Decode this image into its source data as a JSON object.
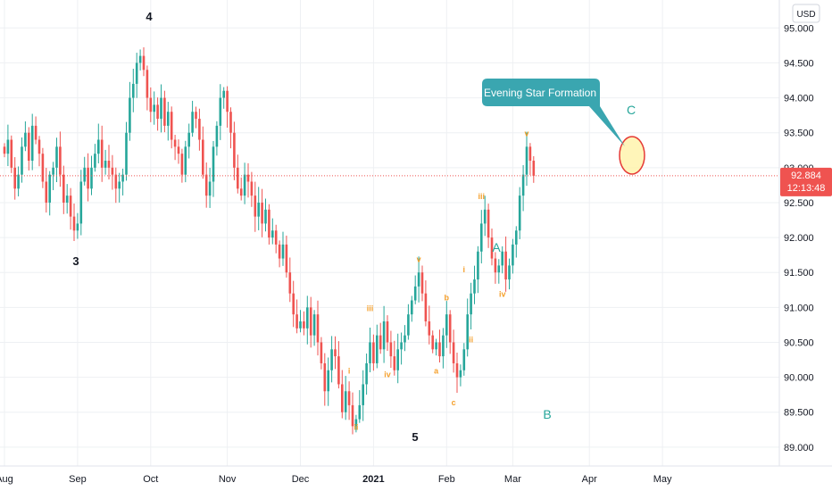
{
  "chart_data": {
    "type": "candlestick",
    "currency": "USD",
    "last_price": "92.884",
    "countdown": "12:13:48",
    "y_ticks": [
      "95.000",
      "94.500",
      "94.000",
      "93.500",
      "93.000",
      "92.500",
      "92.000",
      "91.500",
      "91.000",
      "90.500",
      "90.000",
      "89.500",
      "89.000"
    ],
    "ylim": [
      88.73,
      95.4
    ],
    "x_ticks": [
      {
        "label": "Aug",
        "index": 0
      },
      {
        "label": "Sep",
        "index": 21
      },
      {
        "label": "Oct",
        "index": 42
      },
      {
        "label": "Nov",
        "index": 64
      },
      {
        "label": "Dec",
        "index": 85
      },
      {
        "label": "2021",
        "index": 106
      },
      {
        "label": "Feb",
        "index": 127
      },
      {
        "label": "Mar",
        "index": 146
      },
      {
        "label": "Apr",
        "index": 168
      },
      {
        "label": "May",
        "index": 189
      }
    ],
    "closes": [
      93.2,
      93.4,
      93.0,
      92.7,
      92.9,
      93.3,
      93.5,
      93.1,
      93.6,
      93.4,
      93.2,
      92.8,
      92.5,
      92.9,
      93.0,
      93.3,
      92.9,
      92.5,
      92.6,
      92.3,
      92.1,
      92.2,
      92.8,
      93.0,
      92.7,
      93.0,
      93.2,
      93.4,
      93.0,
      93.1,
      93.0,
      92.9,
      92.7,
      92.8,
      92.9,
      93.5,
      94.0,
      94.2,
      94.5,
      94.6,
      94.4,
      94.0,
      93.8,
      93.9,
      93.7,
      94.0,
      93.6,
      93.8,
      93.4,
      93.3,
      93.2,
      92.9,
      93.3,
      93.5,
      93.8,
      93.7,
      93.4,
      92.9,
      92.6,
      92.8,
      93.3,
      93.6,
      94.0,
      94.1,
      93.8,
      93.5,
      93.0,
      92.7,
      92.6,
      92.9,
      92.8,
      92.6,
      92.3,
      92.5,
      92.2,
      92.4,
      92.0,
      92.1,
      91.9,
      91.7,
      91.9,
      91.5,
      91.2,
      90.9,
      90.7,
      90.8,
      90.7,
      91.0,
      90.6,
      90.9,
      90.5,
      90.2,
      89.8,
      90.1,
      90.4,
      90.3,
      89.9,
      89.5,
      89.8,
      89.6,
      89.3,
      89.4,
      89.6,
      89.9,
      90.2,
      90.5,
      90.2,
      90.6,
      90.4,
      90.8,
      90.5,
      90.3,
      90.1,
      90.4,
      90.5,
      90.6,
      90.9,
      91.1,
      91.3,
      91.5,
      91.2,
      90.8,
      90.6,
      90.4,
      90.5,
      90.3,
      90.6,
      90.9,
      90.5,
      90.2,
      90.0,
      90.1,
      90.4,
      90.9,
      91.2,
      91.4,
      91.8,
      92.2,
      92.4,
      92.0,
      91.7,
      91.5,
      91.6,
      91.8,
      91.4,
      91.6,
      91.9,
      92.1,
      92.6,
      92.9,
      93.3,
      93.1,
      92.884
    ]
  },
  "annotations": {
    "wave_3": "3",
    "wave_4": "4",
    "wave_5": "5",
    "wave_A": "A",
    "wave_B": "B",
    "wave_C": "C",
    "minor_labels": [
      {
        "text": "i",
        "index": 99,
        "price": 90.05
      },
      {
        "text": "ii",
        "index": 101,
        "price": 89.25
      },
      {
        "text": "iii",
        "index": 105,
        "price": 90.95
      },
      {
        "text": "iv",
        "index": 110,
        "price": 90.0
      },
      {
        "text": "v",
        "index": 119,
        "price": 91.65
      },
      {
        "text": "a",
        "index": 124,
        "price": 90.05
      },
      {
        "text": "b",
        "index": 127,
        "price": 91.1
      },
      {
        "text": "c",
        "index": 129,
        "price": 89.6
      },
      {
        "text": "i",
        "index": 132,
        "price": 91.5
      },
      {
        "text": "ii",
        "index": 134,
        "price": 90.5
      },
      {
        "text": "iii",
        "index": 137,
        "price": 92.55
      },
      {
        "text": "iv",
        "index": 143,
        "price": 91.15
      },
      {
        "text": "v",
        "index": 150,
        "price": 93.45
      }
    ],
    "callout": "Evening Star Formation"
  },
  "colors": {
    "up": "#26a69a",
    "down": "#ef5350",
    "grid": "#eef0f3",
    "price_line": "#ef5350",
    "wave_teal": "#26a69a",
    "wave_minor": "#f5a02c",
    "callout_bg": "#3aa6b0",
    "highlight_fill": "#fff3a8",
    "highlight_stroke": "#e53935"
  }
}
